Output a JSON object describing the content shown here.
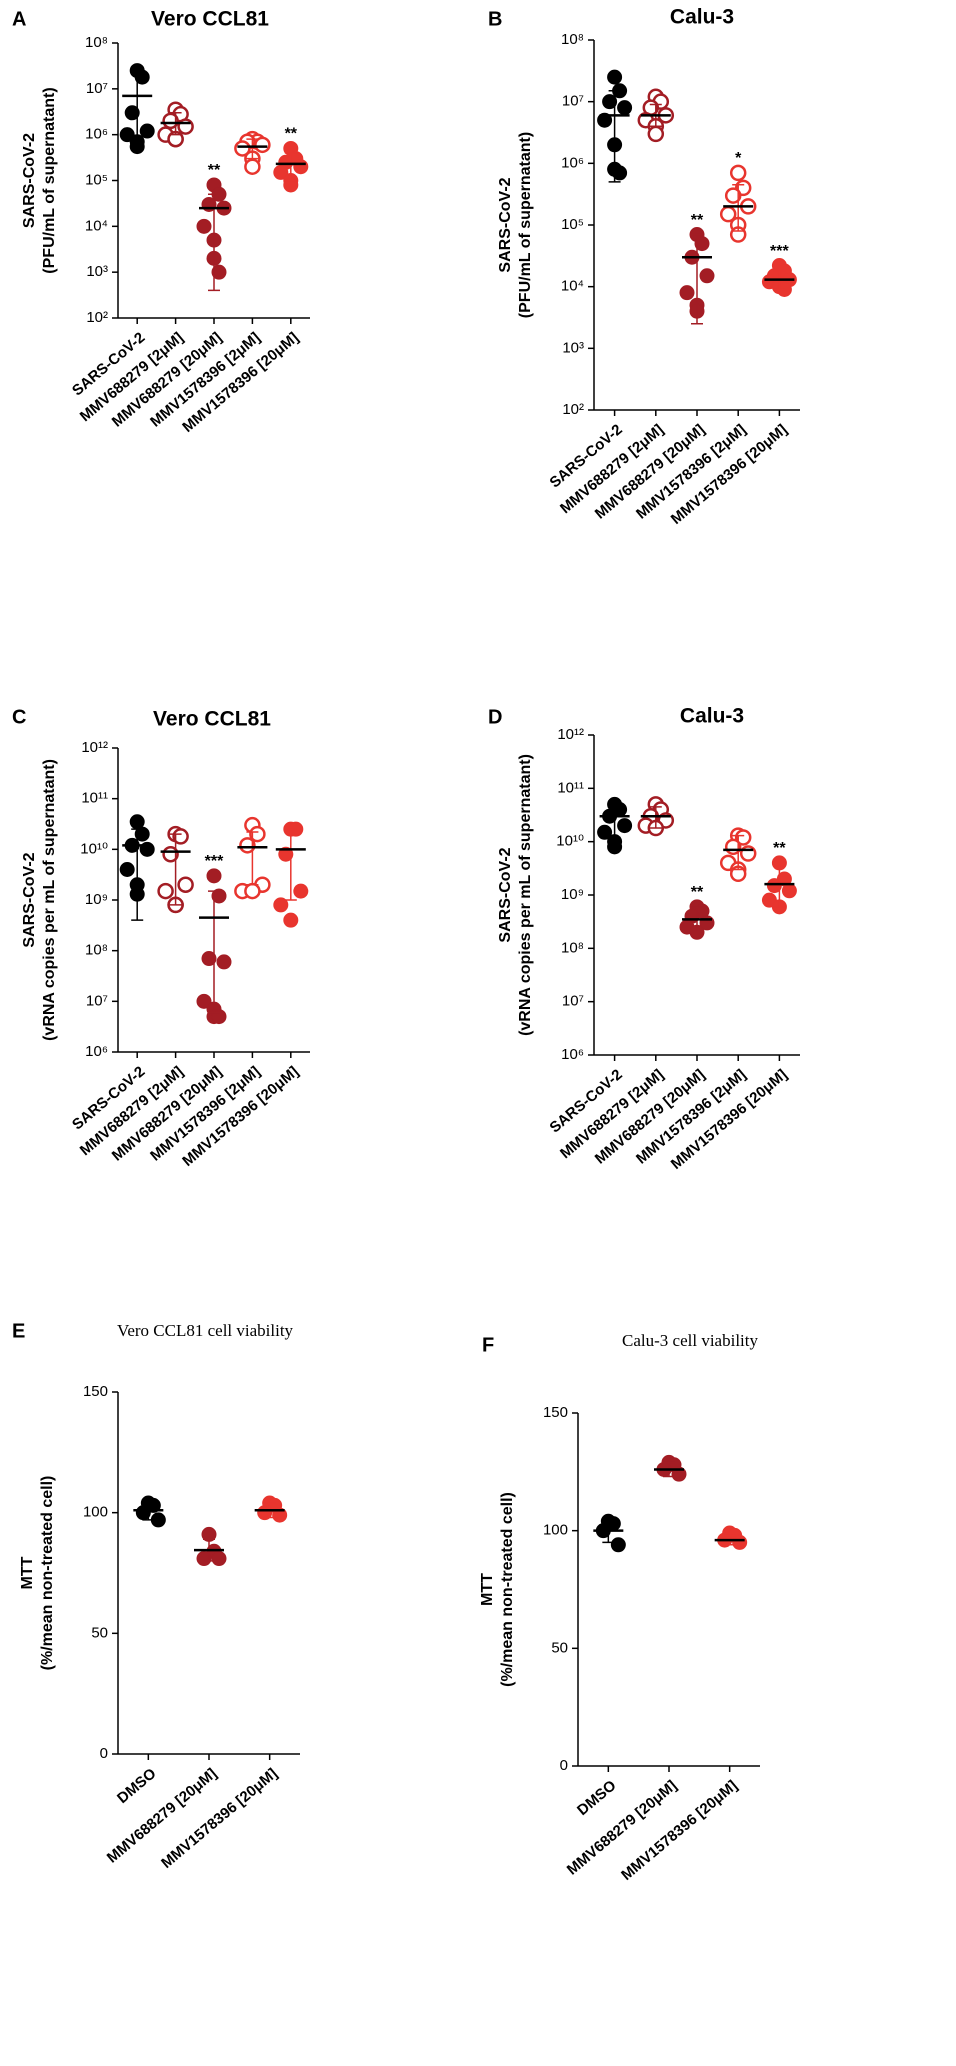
{
  "chart_data": [
    {
      "type": "dot",
      "panel": "A",
      "title": "Vero CCL81",
      "log": true,
      "ylabel": [
        "SARS-CoV-2",
        "(PFU/mL of supernatant)"
      ],
      "categories": [
        "SARS-CoV-2",
        "MMV688279 [2μM]",
        "MMV688279 [20μM]",
        "MMV1578396 [2μM]",
        "MMV1578396 [20μM]"
      ],
      "colors": [
        "#000000",
        "#a31d24",
        "#a31d24",
        "#e8352e",
        "#e8352e"
      ],
      "filled": [
        true,
        false,
        true,
        false,
        true
      ],
      "points": [
        [
          25000000,
          18000000,
          3000000,
          1200000,
          1000000,
          700000,
          550000
        ],
        [
          3500000,
          2800000,
          2000000,
          1500000,
          1000000,
          800000,
          800000
        ],
        [
          80000,
          50000,
          30000,
          25000,
          10000,
          5000,
          2000,
          1000
        ],
        [
          800000,
          700000,
          700000,
          600000,
          500000,
          300000,
          200000
        ],
        [
          500000,
          300000,
          250000,
          200000,
          150000,
          100000,
          80000
        ]
      ],
      "means": [
        7000000,
        1800000,
        25000,
        550000,
        230000
      ],
      "error_low": [
        600000,
        1000000,
        400,
        300000,
        100000
      ],
      "error_high": [
        22000000,
        3000000,
        50000,
        800000,
        400000
      ],
      "annotations": [
        null,
        null,
        "**",
        null,
        "**"
      ],
      "ylim": [
        100,
        100000000
      ],
      "yticks": [
        {
          "value": 100,
          "label": "10²"
        },
        {
          "value": 1000,
          "label": "10³"
        },
        {
          "value": 10000,
          "label": "10⁴"
        },
        {
          "value": 100000,
          "label": "10⁵"
        },
        {
          "value": 1000000,
          "label": "10⁶"
        },
        {
          "value": 10000000,
          "label": "10⁷"
        },
        {
          "value": 100000000,
          "label": "10⁸"
        }
      ]
    },
    {
      "type": "dot",
      "panel": "B",
      "title": "Calu-3",
      "log": true,
      "ylabel": [
        "SARS-CoV-2",
        "(PFU/mL of supernatant)"
      ],
      "categories": [
        "SARS-CoV-2",
        "MMV688279 [2μM]",
        "MMV688279 [20μM]",
        "MMV1578396 [2μM]",
        "MMV1578396 [20μM]"
      ],
      "colors": [
        "#000000",
        "#a31d24",
        "#a31d24",
        "#e8352e",
        "#e8352e"
      ],
      "filled": [
        true,
        false,
        true,
        false,
        true
      ],
      "points": [
        [
          25000000,
          15000000,
          10000000,
          8000000,
          5000000,
          2000000,
          800000,
          700000
        ],
        [
          12000000,
          10000000,
          8000000,
          6000000,
          5000000,
          4000000,
          3000000
        ],
        [
          70000,
          50000,
          30000,
          15000,
          8000,
          5000,
          4000
        ],
        [
          700000,
          400000,
          300000,
          200000,
          150000,
          100000,
          70000
        ],
        [
          22000,
          18000,
          15000,
          13000,
          12000,
          11000,
          10000,
          9000
        ]
      ],
      "means": [
        6000000,
        6000000,
        30000,
        200000,
        13000
      ],
      "error_low": [
        500000,
        4000000,
        2500,
        80000,
        9000
      ],
      "error_high": [
        15000000,
        9000000,
        70000,
        450000,
        18000
      ],
      "annotations": [
        null,
        null,
        "**",
        "*",
        "***"
      ],
      "ylim": [
        100,
        100000000
      ],
      "yticks": [
        {
          "value": 100,
          "label": "10²"
        },
        {
          "value": 1000,
          "label": "10³"
        },
        {
          "value": 10000,
          "label": "10⁴"
        },
        {
          "value": 100000,
          "label": "10⁵"
        },
        {
          "value": 1000000,
          "label": "10⁶"
        },
        {
          "value": 10000000,
          "label": "10⁷"
        },
        {
          "value": 100000000,
          "label": "10⁸"
        }
      ]
    },
    {
      "type": "dot",
      "panel": "C",
      "title": "Vero CCL81",
      "log": true,
      "ylabel": [
        "SARS-CoV-2",
        "(vRNA copies per mL of supernatant)"
      ],
      "categories": [
        "SARS-CoV-2",
        "MMV688279 [2μM]",
        "MMV688279 [20μM]",
        "MMV1578396 [2μM]",
        "MMV1578396 [20μM]"
      ],
      "colors": [
        "#000000",
        "#a31d24",
        "#a31d24",
        "#e8352e",
        "#e8352e"
      ],
      "filled": [
        true,
        false,
        true,
        false,
        true
      ],
      "points": [
        [
          35000000000,
          20000000000,
          12000000000,
          10000000000,
          4000000000,
          2000000000,
          1300000000
        ],
        [
          20000000000,
          18000000000,
          8000000000,
          2000000000,
          1500000000,
          800000000,
          800000000
        ],
        [
          3000000000,
          1200000000,
          70000000,
          60000000,
          10000000,
          7000000,
          5000000,
          5000000
        ],
        [
          30000000000,
          20000000000,
          12000000000,
          2000000000,
          1500000000,
          1500000000
        ],
        [
          25000000000,
          25000000000,
          8000000000,
          1500000000,
          800000000,
          400000000
        ]
      ],
      "means": [
        12000000000,
        9000000000,
        450000000,
        11000000000,
        10000000000
      ],
      "error_low": [
        400000000,
        800000000,
        6000000,
        2000000000,
        1000000000
      ],
      "error_high": [
        25000000000,
        20000000000,
        1500000000,
        22000000000,
        25000000000
      ],
      "annotations": [
        null,
        null,
        "***",
        null,
        null
      ],
      "ylim": [
        1000000,
        1000000000000
      ],
      "yticks": [
        {
          "value": 1000000,
          "label": "10⁶"
        },
        {
          "value": 10000000,
          "label": "10⁷"
        },
        {
          "value": 100000000,
          "label": "10⁸"
        },
        {
          "value": 1000000000,
          "label": "10⁹"
        },
        {
          "value": 10000000000,
          "label": "10¹⁰"
        },
        {
          "value": 100000000000,
          "label": "10¹¹"
        },
        {
          "value": 1000000000000,
          "label": "10¹²"
        }
      ]
    },
    {
      "type": "dot",
      "panel": "D",
      "title": "Calu-3",
      "log": true,
      "ylabel": [
        "SARS-CoV-2",
        "(vRNA copies per mL of supernatant)"
      ],
      "categories": [
        "SARS-CoV-2",
        "MMV688279 [2μM]",
        "MMV688279 [20μM]",
        "MMV1578396 [2μM]",
        "MMV1578396 [20μM]"
      ],
      "colors": [
        "#000000",
        "#a31d24",
        "#a31d24",
        "#e8352e",
        "#e8352e"
      ],
      "filled": [
        true,
        false,
        true,
        false,
        true
      ],
      "points": [
        [
          50000000000,
          40000000000,
          30000000000,
          20000000000,
          15000000000,
          10000000000,
          8000000000
        ],
        [
          50000000000,
          40000000000,
          30000000000,
          25000000000,
          20000000000,
          18000000000
        ],
        [
          600000000,
          500000000,
          400000000,
          300000000,
          250000000,
          200000000
        ],
        [
          13000000000,
          12000000000,
          8000000000,
          6000000000,
          4000000000,
          3000000000,
          2500000000
        ],
        [
          4000000000,
          2000000000,
          1500000000,
          1200000000,
          800000000,
          600000000
        ]
      ],
      "means": [
        30000000000,
        30000000000,
        350000000,
        7000000000,
        1600000000
      ],
      "error_low": [
        12000000000,
        18000000000,
        200000000,
        3000000000,
        600000000
      ],
      "error_high": [
        50000000000,
        45000000000,
        600000000,
        13000000000,
        3500000000
      ],
      "annotations": [
        null,
        null,
        "**",
        null,
        "**"
      ],
      "ylim": [
        1000000,
        1000000000000
      ],
      "yticks": [
        {
          "value": 1000000,
          "label": "10⁶"
        },
        {
          "value": 10000000,
          "label": "10⁷"
        },
        {
          "value": 100000000,
          "label": "10⁸"
        },
        {
          "value": 1000000000,
          "label": "10⁹"
        },
        {
          "value": 10000000000,
          "label": "10¹⁰"
        },
        {
          "value": 100000000000,
          "label": "10¹¹"
        },
        {
          "value": 1000000000000,
          "label": "10¹²"
        }
      ]
    },
    {
      "type": "dot",
      "panel": "E",
      "title": "Vero CCL81 cell viability",
      "log": false,
      "ylabel": [
        "MTT",
        "(%/mean non-treated cell)"
      ],
      "categories": [
        "DMSO",
        "MMV688279 [20μM]",
        "MMV1578396 [20μM]"
      ],
      "colors": [
        "#000000",
        "#a31d24",
        "#e8352e"
      ],
      "filled": [
        true,
        true,
        true
      ],
      "points": [
        [
          104,
          103,
          100,
          97
        ],
        [
          91,
          84,
          81,
          81
        ],
        [
          104,
          103,
          100,
          99
        ]
      ],
      "means": [
        101,
        84.5,
        101
      ],
      "error_low": [
        97,
        80,
        98
      ],
      "error_high": [
        104,
        89,
        104
      ],
      "ylim": [
        0,
        150
      ],
      "yticks": [
        0,
        50,
        100,
        150
      ]
    },
    {
      "type": "dot",
      "panel": "F",
      "title": "Calu-3 cell viability",
      "log": false,
      "ylabel": [
        "MTT",
        "(%/mean non-treated cell)"
      ],
      "categories": [
        "DMSO",
        "MMV688279 [20μM]",
        "MMV1578396 [20μM]"
      ],
      "colors": [
        "#000000",
        "#a31d24",
        "#e8352e"
      ],
      "filled": [
        true,
        true,
        true
      ],
      "points": [
        [
          104,
          103,
          100,
          94
        ],
        [
          129,
          128,
          126,
          124
        ],
        [
          99,
          98,
          96,
          95
        ]
      ],
      "means": [
        100,
        126,
        96
      ],
      "error_low": [
        95,
        123,
        94
      ],
      "error_high": [
        104,
        129,
        98
      ],
      "ylim": [
        0,
        150
      ],
      "yticks": [
        0,
        50,
        100,
        150
      ]
    }
  ]
}
